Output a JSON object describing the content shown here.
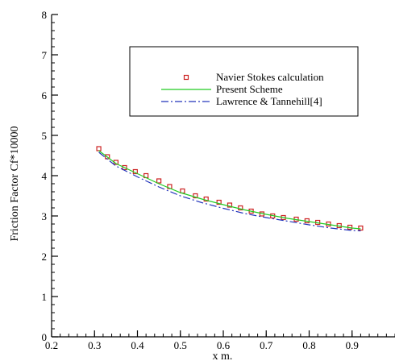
{
  "chart_data": {
    "type": "line",
    "title": "",
    "xlabel": "x m.",
    "ylabel": "Friction Factor Cf*10000",
    "xlim": [
      0.2,
      1.0
    ],
    "ylim": [
      0,
      8
    ],
    "xticks": [
      0.2,
      0.3,
      0.4,
      0.5,
      0.6,
      0.7,
      0.8,
      0.9
    ],
    "xtick_labels": [
      "0.2",
      "0.3",
      "0.4",
      "0.5",
      "0.6",
      "0.7",
      "0.8",
      "0.9"
    ],
    "yticks": [
      0,
      1,
      2,
      3,
      4,
      5,
      6,
      7,
      8
    ],
    "ytick_labels": [
      "0",
      "1",
      "2",
      "3",
      "4",
      "5",
      "6",
      "7",
      "8"
    ],
    "x_minor_step": 0.02,
    "y_minor_step": 0.2,
    "grid": false,
    "legend_position": "top-right",
    "series": [
      {
        "name": "Navier Stokes calculation",
        "style": "markers",
        "marker": "square",
        "color": "#cc2222",
        "fill": "#ffffff",
        "x": [
          0.31,
          0.33,
          0.35,
          0.37,
          0.395,
          0.42,
          0.45,
          0.475,
          0.505,
          0.535,
          0.56,
          0.59,
          0.615,
          0.64,
          0.665,
          0.69,
          0.715,
          0.74,
          0.77,
          0.795,
          0.82,
          0.845,
          0.87,
          0.895,
          0.92
        ],
        "y": [
          4.67,
          4.47,
          4.33,
          4.2,
          4.1,
          4.0,
          3.87,
          3.73,
          3.62,
          3.5,
          3.42,
          3.34,
          3.27,
          3.2,
          3.12,
          3.05,
          3.0,
          2.96,
          2.92,
          2.88,
          2.84,
          2.8,
          2.76,
          2.72,
          2.7
        ]
      },
      {
        "name": "Present Scheme",
        "style": "solid",
        "color": "#22cc22",
        "x": [
          0.31,
          0.35,
          0.4,
          0.45,
          0.5,
          0.55,
          0.6,
          0.65,
          0.7,
          0.75,
          0.8,
          0.85,
          0.9,
          0.92
        ],
        "y": [
          4.62,
          4.3,
          4.05,
          3.8,
          3.58,
          3.42,
          3.28,
          3.15,
          3.04,
          2.94,
          2.86,
          2.78,
          2.7,
          2.68
        ]
      },
      {
        "name": "Lawrence & Tannehill[4]",
        "style": "dashdot",
        "color": "#2233bb",
        "x": [
          0.31,
          0.35,
          0.4,
          0.45,
          0.5,
          0.55,
          0.6,
          0.65,
          0.7,
          0.75,
          0.8,
          0.85,
          0.9,
          0.92
        ],
        "y": [
          4.58,
          4.24,
          3.97,
          3.72,
          3.5,
          3.33,
          3.19,
          3.06,
          2.96,
          2.87,
          2.78,
          2.7,
          2.64,
          2.63
        ]
      }
    ]
  }
}
